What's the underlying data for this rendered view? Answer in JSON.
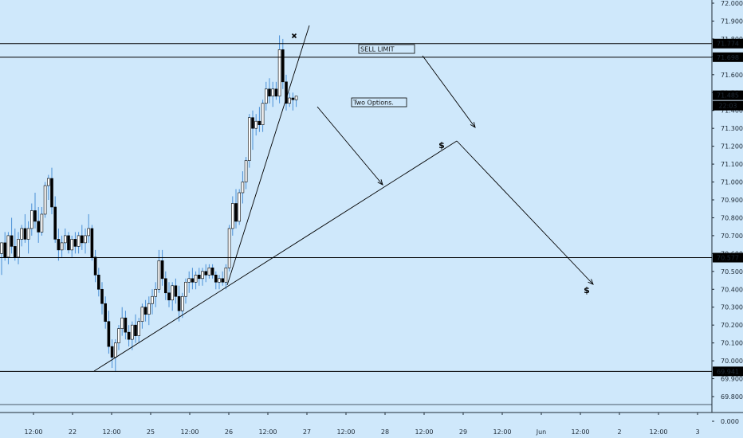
{
  "chart_data": {
    "type": "candlestick",
    "background": "#cfe8fb",
    "ylim": [
      69.585,
      72.05
    ],
    "y_ticks": [
      72.0,
      71.9,
      71.8,
      71.7,
      71.6,
      71.5,
      71.4,
      71.3,
      71.2,
      71.1,
      71.0,
      70.9,
      70.8,
      70.7,
      70.6,
      70.5,
      70.4,
      70.3,
      70.2,
      70.1,
      70.0,
      69.9,
      69.8
    ],
    "y_tick_labels": [
      "72.000",
      "71.900",
      "71.800",
      "71.700",
      "71.600",
      "71.500",
      "71.400",
      "71.300",
      "71.200",
      "71.100",
      "71.000",
      "70.900",
      "70.800",
      "70.700",
      "70.600",
      "70.500",
      "70.400",
      "70.300",
      "70.200",
      "70.100",
      "70.000",
      "69.900",
      "69.800"
    ],
    "y_bottom_label": "0.000",
    "x_ticks": [
      "12:00",
      "22",
      "12:00",
      "25",
      "12:00",
      "26",
      "12:00",
      "27",
      "12:00",
      "28",
      "12:00",
      "29",
      "12:00",
      "Jun",
      "12:00",
      "2",
      "12:00",
      "3"
    ],
    "horizontal_levels": [
      {
        "value": 71.774,
        "label": "71.774"
      },
      {
        "value": 71.698,
        "label": "71.698"
      },
      {
        "value": 70.577,
        "label": "70.577"
      },
      {
        "value": 69.941,
        "label": "69.941"
      }
    ],
    "current_price_label": "71.485",
    "time_label": "22:03",
    "annotations": [
      {
        "text": "SELL LIMIT"
      },
      {
        "text": "Two Options."
      },
      {
        "text": "$"
      },
      {
        "text": "$"
      }
    ],
    "colors": {
      "up": "#ffffff",
      "down": "#000000",
      "wick": "#4a8fd6",
      "line": "#000000",
      "price_label_bg": "#000000",
      "price_label_text": "#ffffff"
    },
    "candles": [
      {
        "o": 70.6,
        "h": 70.66,
        "l": 70.48,
        "c": 70.66
      },
      {
        "o": 70.66,
        "h": 70.72,
        "l": 70.56,
        "c": 70.58
      },
      {
        "o": 70.58,
        "h": 70.72,
        "l": 70.54,
        "c": 70.7
      },
      {
        "o": 70.7,
        "h": 70.8,
        "l": 70.6,
        "c": 70.64
      },
      {
        "o": 70.64,
        "h": 70.74,
        "l": 70.56,
        "c": 70.58
      },
      {
        "o": 70.58,
        "h": 70.72,
        "l": 70.54,
        "c": 70.68
      },
      {
        "o": 70.68,
        "h": 70.76,
        "l": 70.64,
        "c": 70.74
      },
      {
        "o": 70.74,
        "h": 70.82,
        "l": 70.66,
        "c": 70.68
      },
      {
        "o": 70.68,
        "h": 70.78,
        "l": 70.6,
        "c": 70.74
      },
      {
        "o": 70.74,
        "h": 70.88,
        "l": 70.7,
        "c": 70.84
      },
      {
        "o": 70.84,
        "h": 70.94,
        "l": 70.74,
        "c": 70.78
      },
      {
        "o": 70.78,
        "h": 70.86,
        "l": 70.66,
        "c": 70.72
      },
      {
        "o": 70.72,
        "h": 70.86,
        "l": 70.7,
        "c": 70.82
      },
      {
        "o": 70.82,
        "h": 71.0,
        "l": 70.8,
        "c": 70.98
      },
      {
        "o": 70.98,
        "h": 71.04,
        "l": 70.9,
        "c": 71.02
      },
      {
        "o": 71.02,
        "h": 71.08,
        "l": 70.82,
        "c": 70.86
      },
      {
        "o": 70.86,
        "h": 70.92,
        "l": 70.66,
        "c": 70.68
      },
      {
        "o": 70.68,
        "h": 70.74,
        "l": 70.56,
        "c": 70.62
      },
      {
        "o": 70.62,
        "h": 70.7,
        "l": 70.58,
        "c": 70.66
      },
      {
        "o": 70.66,
        "h": 70.74,
        "l": 70.62,
        "c": 70.7
      },
      {
        "o": 70.7,
        "h": 70.72,
        "l": 70.6,
        "c": 70.62
      },
      {
        "o": 70.62,
        "h": 70.7,
        "l": 70.58,
        "c": 70.68
      },
      {
        "o": 70.68,
        "h": 70.72,
        "l": 70.6,
        "c": 70.64
      },
      {
        "o": 70.64,
        "h": 70.72,
        "l": 70.6,
        "c": 70.7
      },
      {
        "o": 70.7,
        "h": 70.76,
        "l": 70.62,
        "c": 70.66
      },
      {
        "o": 70.66,
        "h": 70.74,
        "l": 70.6,
        "c": 70.7
      },
      {
        "o": 70.7,
        "h": 70.82,
        "l": 70.66,
        "c": 70.74
      },
      {
        "o": 70.74,
        "h": 70.76,
        "l": 70.56,
        "c": 70.58
      },
      {
        "o": 70.58,
        "h": 70.62,
        "l": 70.44,
        "c": 70.48
      },
      {
        "o": 70.48,
        "h": 70.52,
        "l": 70.36,
        "c": 70.4
      },
      {
        "o": 70.4,
        "h": 70.44,
        "l": 70.26,
        "c": 70.32
      },
      {
        "o": 70.32,
        "h": 70.36,
        "l": 70.18,
        "c": 70.22
      },
      {
        "o": 70.22,
        "h": 70.28,
        "l": 70.04,
        "c": 70.08
      },
      {
        "o": 70.08,
        "h": 70.12,
        "l": 69.96,
        "c": 70.02
      },
      {
        "o": 70.02,
        "h": 70.12,
        "l": 69.94,
        "c": 70.1
      },
      {
        "o": 70.1,
        "h": 70.2,
        "l": 70.06,
        "c": 70.18
      },
      {
        "o": 70.18,
        "h": 70.3,
        "l": 70.14,
        "c": 70.24
      },
      {
        "o": 70.24,
        "h": 70.28,
        "l": 70.12,
        "c": 70.16
      },
      {
        "o": 70.16,
        "h": 70.2,
        "l": 70.08,
        "c": 70.12
      },
      {
        "o": 70.12,
        "h": 70.22,
        "l": 70.06,
        "c": 70.2
      },
      {
        "o": 70.2,
        "h": 70.26,
        "l": 70.1,
        "c": 70.14
      },
      {
        "o": 70.14,
        "h": 70.24,
        "l": 70.1,
        "c": 70.22
      },
      {
        "o": 70.22,
        "h": 70.32,
        "l": 70.18,
        "c": 70.3
      },
      {
        "o": 70.3,
        "h": 70.34,
        "l": 70.22,
        "c": 70.26
      },
      {
        "o": 70.26,
        "h": 70.36,
        "l": 70.2,
        "c": 70.32
      },
      {
        "o": 70.32,
        "h": 70.4,
        "l": 70.26,
        "c": 70.36
      },
      {
        "o": 70.36,
        "h": 70.44,
        "l": 70.3,
        "c": 70.4
      },
      {
        "o": 70.4,
        "h": 70.62,
        "l": 70.38,
        "c": 70.56
      },
      {
        "o": 70.56,
        "h": 70.62,
        "l": 70.42,
        "c": 70.46
      },
      {
        "o": 70.46,
        "h": 70.5,
        "l": 70.34,
        "c": 70.38
      },
      {
        "o": 70.38,
        "h": 70.44,
        "l": 70.3,
        "c": 70.34
      },
      {
        "o": 70.34,
        "h": 70.44,
        "l": 70.28,
        "c": 70.42
      },
      {
        "o": 70.42,
        "h": 70.46,
        "l": 70.32,
        "c": 70.36
      },
      {
        "o": 70.36,
        "h": 70.42,
        "l": 70.22,
        "c": 70.28
      },
      {
        "o": 70.28,
        "h": 70.38,
        "l": 70.24,
        "c": 70.36
      },
      {
        "o": 70.36,
        "h": 70.46,
        "l": 70.32,
        "c": 70.44
      },
      {
        "o": 70.44,
        "h": 70.5,
        "l": 70.38,
        "c": 70.46
      },
      {
        "o": 70.46,
        "h": 70.52,
        "l": 70.4,
        "c": 70.44
      },
      {
        "o": 70.44,
        "h": 70.5,
        "l": 70.4,
        "c": 70.48
      },
      {
        "o": 70.48,
        "h": 70.52,
        "l": 70.42,
        "c": 70.46
      },
      {
        "o": 70.46,
        "h": 70.52,
        "l": 70.42,
        "c": 70.5
      },
      {
        "o": 70.5,
        "h": 70.54,
        "l": 70.44,
        "c": 70.48
      },
      {
        "o": 70.48,
        "h": 70.54,
        "l": 70.46,
        "c": 70.52
      },
      {
        "o": 70.52,
        "h": 70.54,
        "l": 70.46,
        "c": 70.48
      },
      {
        "o": 70.48,
        "h": 70.5,
        "l": 70.4,
        "c": 70.44
      },
      {
        "o": 70.44,
        "h": 70.48,
        "l": 70.4,
        "c": 70.46
      },
      {
        "o": 70.46,
        "h": 70.5,
        "l": 70.42,
        "c": 70.44
      },
      {
        "o": 70.44,
        "h": 70.54,
        "l": 70.4,
        "c": 70.52
      },
      {
        "o": 70.52,
        "h": 70.76,
        "l": 70.5,
        "c": 70.74
      },
      {
        "o": 70.74,
        "h": 70.92,
        "l": 70.7,
        "c": 70.88
      },
      {
        "o": 70.88,
        "h": 70.96,
        "l": 70.74,
        "c": 70.78
      },
      {
        "o": 70.78,
        "h": 70.96,
        "l": 70.76,
        "c": 70.94
      },
      {
        "o": 70.94,
        "h": 71.06,
        "l": 70.88,
        "c": 71.0
      },
      {
        "o": 71.0,
        "h": 71.14,
        "l": 70.96,
        "c": 71.12
      },
      {
        "o": 71.12,
        "h": 71.38,
        "l": 71.08,
        "c": 71.36
      },
      {
        "o": 71.36,
        "h": 71.4,
        "l": 71.18,
        "c": 71.3
      },
      {
        "o": 71.3,
        "h": 71.38,
        "l": 71.26,
        "c": 71.34
      },
      {
        "o": 71.34,
        "h": 71.42,
        "l": 71.28,
        "c": 71.32
      },
      {
        "o": 71.32,
        "h": 71.46,
        "l": 71.28,
        "c": 71.44
      },
      {
        "o": 71.44,
        "h": 71.56,
        "l": 71.4,
        "c": 71.52
      },
      {
        "o": 71.52,
        "h": 71.58,
        "l": 71.44,
        "c": 71.48
      },
      {
        "o": 71.48,
        "h": 71.56,
        "l": 71.42,
        "c": 71.52
      },
      {
        "o": 71.52,
        "h": 71.56,
        "l": 71.46,
        "c": 71.48
      },
      {
        "o": 71.48,
        "h": 71.82,
        "l": 71.44,
        "c": 71.74
      },
      {
        "o": 71.74,
        "h": 71.8,
        "l": 71.52,
        "c": 71.56
      },
      {
        "o": 71.56,
        "h": 71.6,
        "l": 71.4,
        "c": 71.44
      },
      {
        "o": 71.44,
        "h": 71.5,
        "l": 71.42,
        "c": 71.47
      },
      {
        "o": 71.47,
        "h": 71.5,
        "l": 71.4,
        "c": 71.46
      },
      {
        "o": 71.46,
        "h": 71.48,
        "l": 71.42,
        "c": 71.48
      }
    ]
  }
}
